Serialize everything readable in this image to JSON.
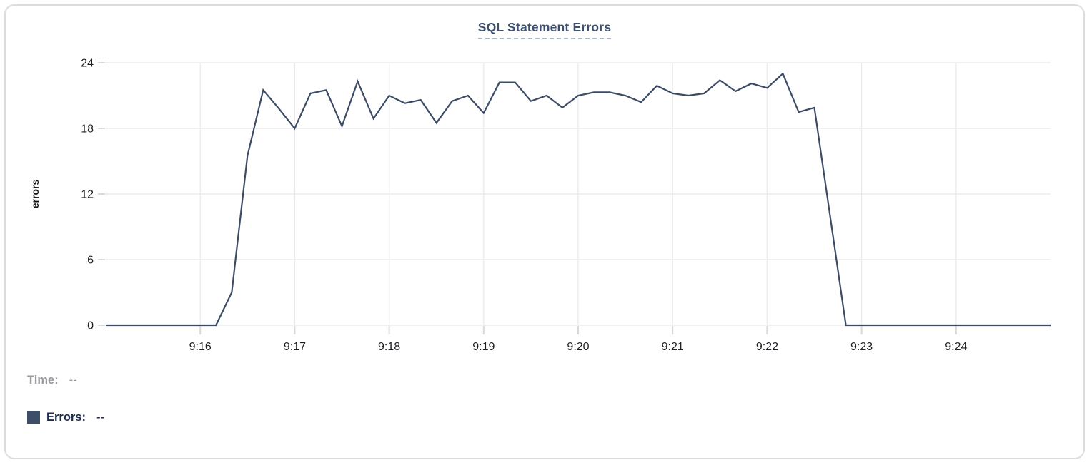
{
  "chart_data": {
    "type": "line",
    "title": "SQL Statement Errors",
    "xlabel": "",
    "ylabel": "errors",
    "ylim": [
      0,
      24
    ],
    "y_ticks": [
      0,
      6,
      12,
      18,
      24
    ],
    "x_ticks": [
      "9:16",
      "9:17",
      "9:18",
      "9:19",
      "9:20",
      "9:21",
      "9:22",
      "9:23",
      "9:24"
    ],
    "x_range": [
      "9:15:00",
      "9:25:00"
    ],
    "grid": true,
    "legend_position": "bottom-left",
    "series": [
      {
        "name": "Errors",
        "color": "#3c4b66",
        "points": [
          [
            "9:15:00",
            0
          ],
          [
            "9:15:10",
            0
          ],
          [
            "9:15:20",
            0
          ],
          [
            "9:15:30",
            0
          ],
          [
            "9:15:40",
            0
          ],
          [
            "9:15:50",
            0
          ],
          [
            "9:16:00",
            0
          ],
          [
            "9:16:10",
            0
          ],
          [
            "9:16:20",
            3
          ],
          [
            "9:16:30",
            15.5
          ],
          [
            "9:16:40",
            21.5
          ],
          [
            "9:16:50",
            19.8
          ],
          [
            "9:17:00",
            18
          ],
          [
            "9:17:10",
            21.2
          ],
          [
            "9:17:20",
            21.5
          ],
          [
            "9:17:30",
            18.2
          ],
          [
            "9:17:40",
            22.3
          ],
          [
            "9:17:50",
            18.9
          ],
          [
            "9:18:00",
            21
          ],
          [
            "9:18:10",
            20.3
          ],
          [
            "9:18:20",
            20.6
          ],
          [
            "9:18:30",
            18.5
          ],
          [
            "9:18:40",
            20.5
          ],
          [
            "9:18:50",
            21
          ],
          [
            "9:19:00",
            19.4
          ],
          [
            "9:19:10",
            22.2
          ],
          [
            "9:19:20",
            22.2
          ],
          [
            "9:19:30",
            20.5
          ],
          [
            "9:19:40",
            21
          ],
          [
            "9:19:50",
            19.9
          ],
          [
            "9:20:00",
            21
          ],
          [
            "9:20:10",
            21.3
          ],
          [
            "9:20:20",
            21.3
          ],
          [
            "9:20:30",
            21
          ],
          [
            "9:20:40",
            20.4
          ],
          [
            "9:20:50",
            21.9
          ],
          [
            "9:21:00",
            21.2
          ],
          [
            "9:21:10",
            21
          ],
          [
            "9:21:20",
            21.2
          ],
          [
            "9:21:30",
            22.4
          ],
          [
            "9:21:40",
            21.4
          ],
          [
            "9:21:50",
            22.1
          ],
          [
            "9:22:00",
            21.7
          ],
          [
            "9:22:10",
            23
          ],
          [
            "9:22:20",
            19.5
          ],
          [
            "9:22:30",
            19.9
          ],
          [
            "9:22:40",
            10
          ],
          [
            "9:22:50",
            0
          ],
          [
            "9:23:00",
            0
          ],
          [
            "9:23:10",
            0
          ],
          [
            "9:23:20",
            0
          ],
          [
            "9:23:30",
            0
          ],
          [
            "9:23:40",
            0
          ],
          [
            "9:23:50",
            0
          ],
          [
            "9:24:00",
            0
          ],
          [
            "9:24:10",
            0
          ],
          [
            "9:24:20",
            0
          ],
          [
            "9:24:30",
            0
          ],
          [
            "9:24:40",
            0
          ],
          [
            "9:24:50",
            0
          ],
          [
            "9:25:00",
            0
          ]
        ]
      }
    ]
  },
  "tooltip_legend": {
    "time_label": "Time:",
    "time_value": "--",
    "errors_label": "Errors:",
    "errors_value": "--",
    "swatch_color": "#3e4d68"
  },
  "colors": {
    "line": "#3c4b66",
    "title": "#3d5070",
    "grid": "#ebebeb",
    "tick": "#d9d9d9",
    "axis_text": "#1f1f23",
    "card_border": "#dcdcdc"
  }
}
